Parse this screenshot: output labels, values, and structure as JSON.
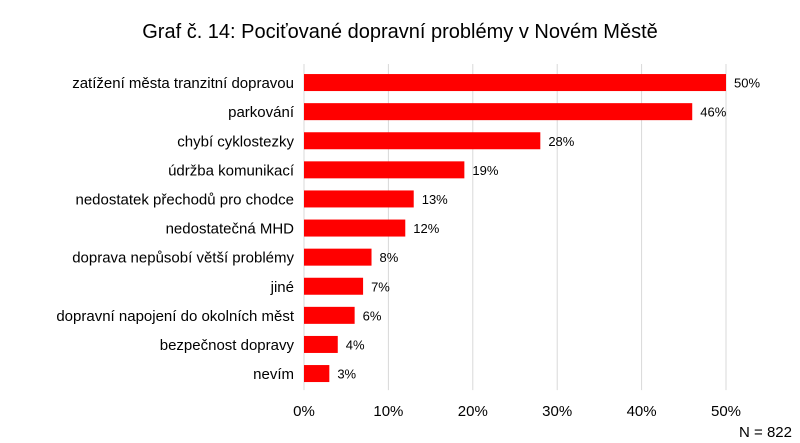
{
  "chart_data": {
    "type": "bar",
    "orientation": "horizontal",
    "title": "Graf č. 14: Pociťované dopravní problémy v Novém Městě",
    "categories": [
      "zatížení města tranzitní dopravou",
      "parkování",
      "chybí cyklostezky",
      "údržba komunikací",
      "nedostatek přechodů pro chodce",
      "nedostatečná MHD",
      "doprava nepůsobí větší problémy",
      "jiné",
      "dopravní napojení do okolních měst",
      "bezpečnost dopravy",
      "nevím"
    ],
    "values": [
      50,
      46,
      28,
      19,
      13,
      12,
      8,
      7,
      6,
      4,
      3
    ],
    "data_labels": [
      "50%",
      "46%",
      "28%",
      "19%",
      "13%",
      "12%",
      "8%",
      "7%",
      "6%",
      "4%",
      "3%"
    ],
    "x_ticks": [
      0,
      10,
      20,
      30,
      40,
      50
    ],
    "x_tick_labels": [
      "0%",
      "10%",
      "20%",
      "30%",
      "40%",
      "50%"
    ],
    "xlim": [
      0,
      50
    ],
    "grid": true,
    "legend": "none",
    "bar_color": "#FF0000",
    "grid_color": "#D9D9D9",
    "note": "N = 822"
  }
}
